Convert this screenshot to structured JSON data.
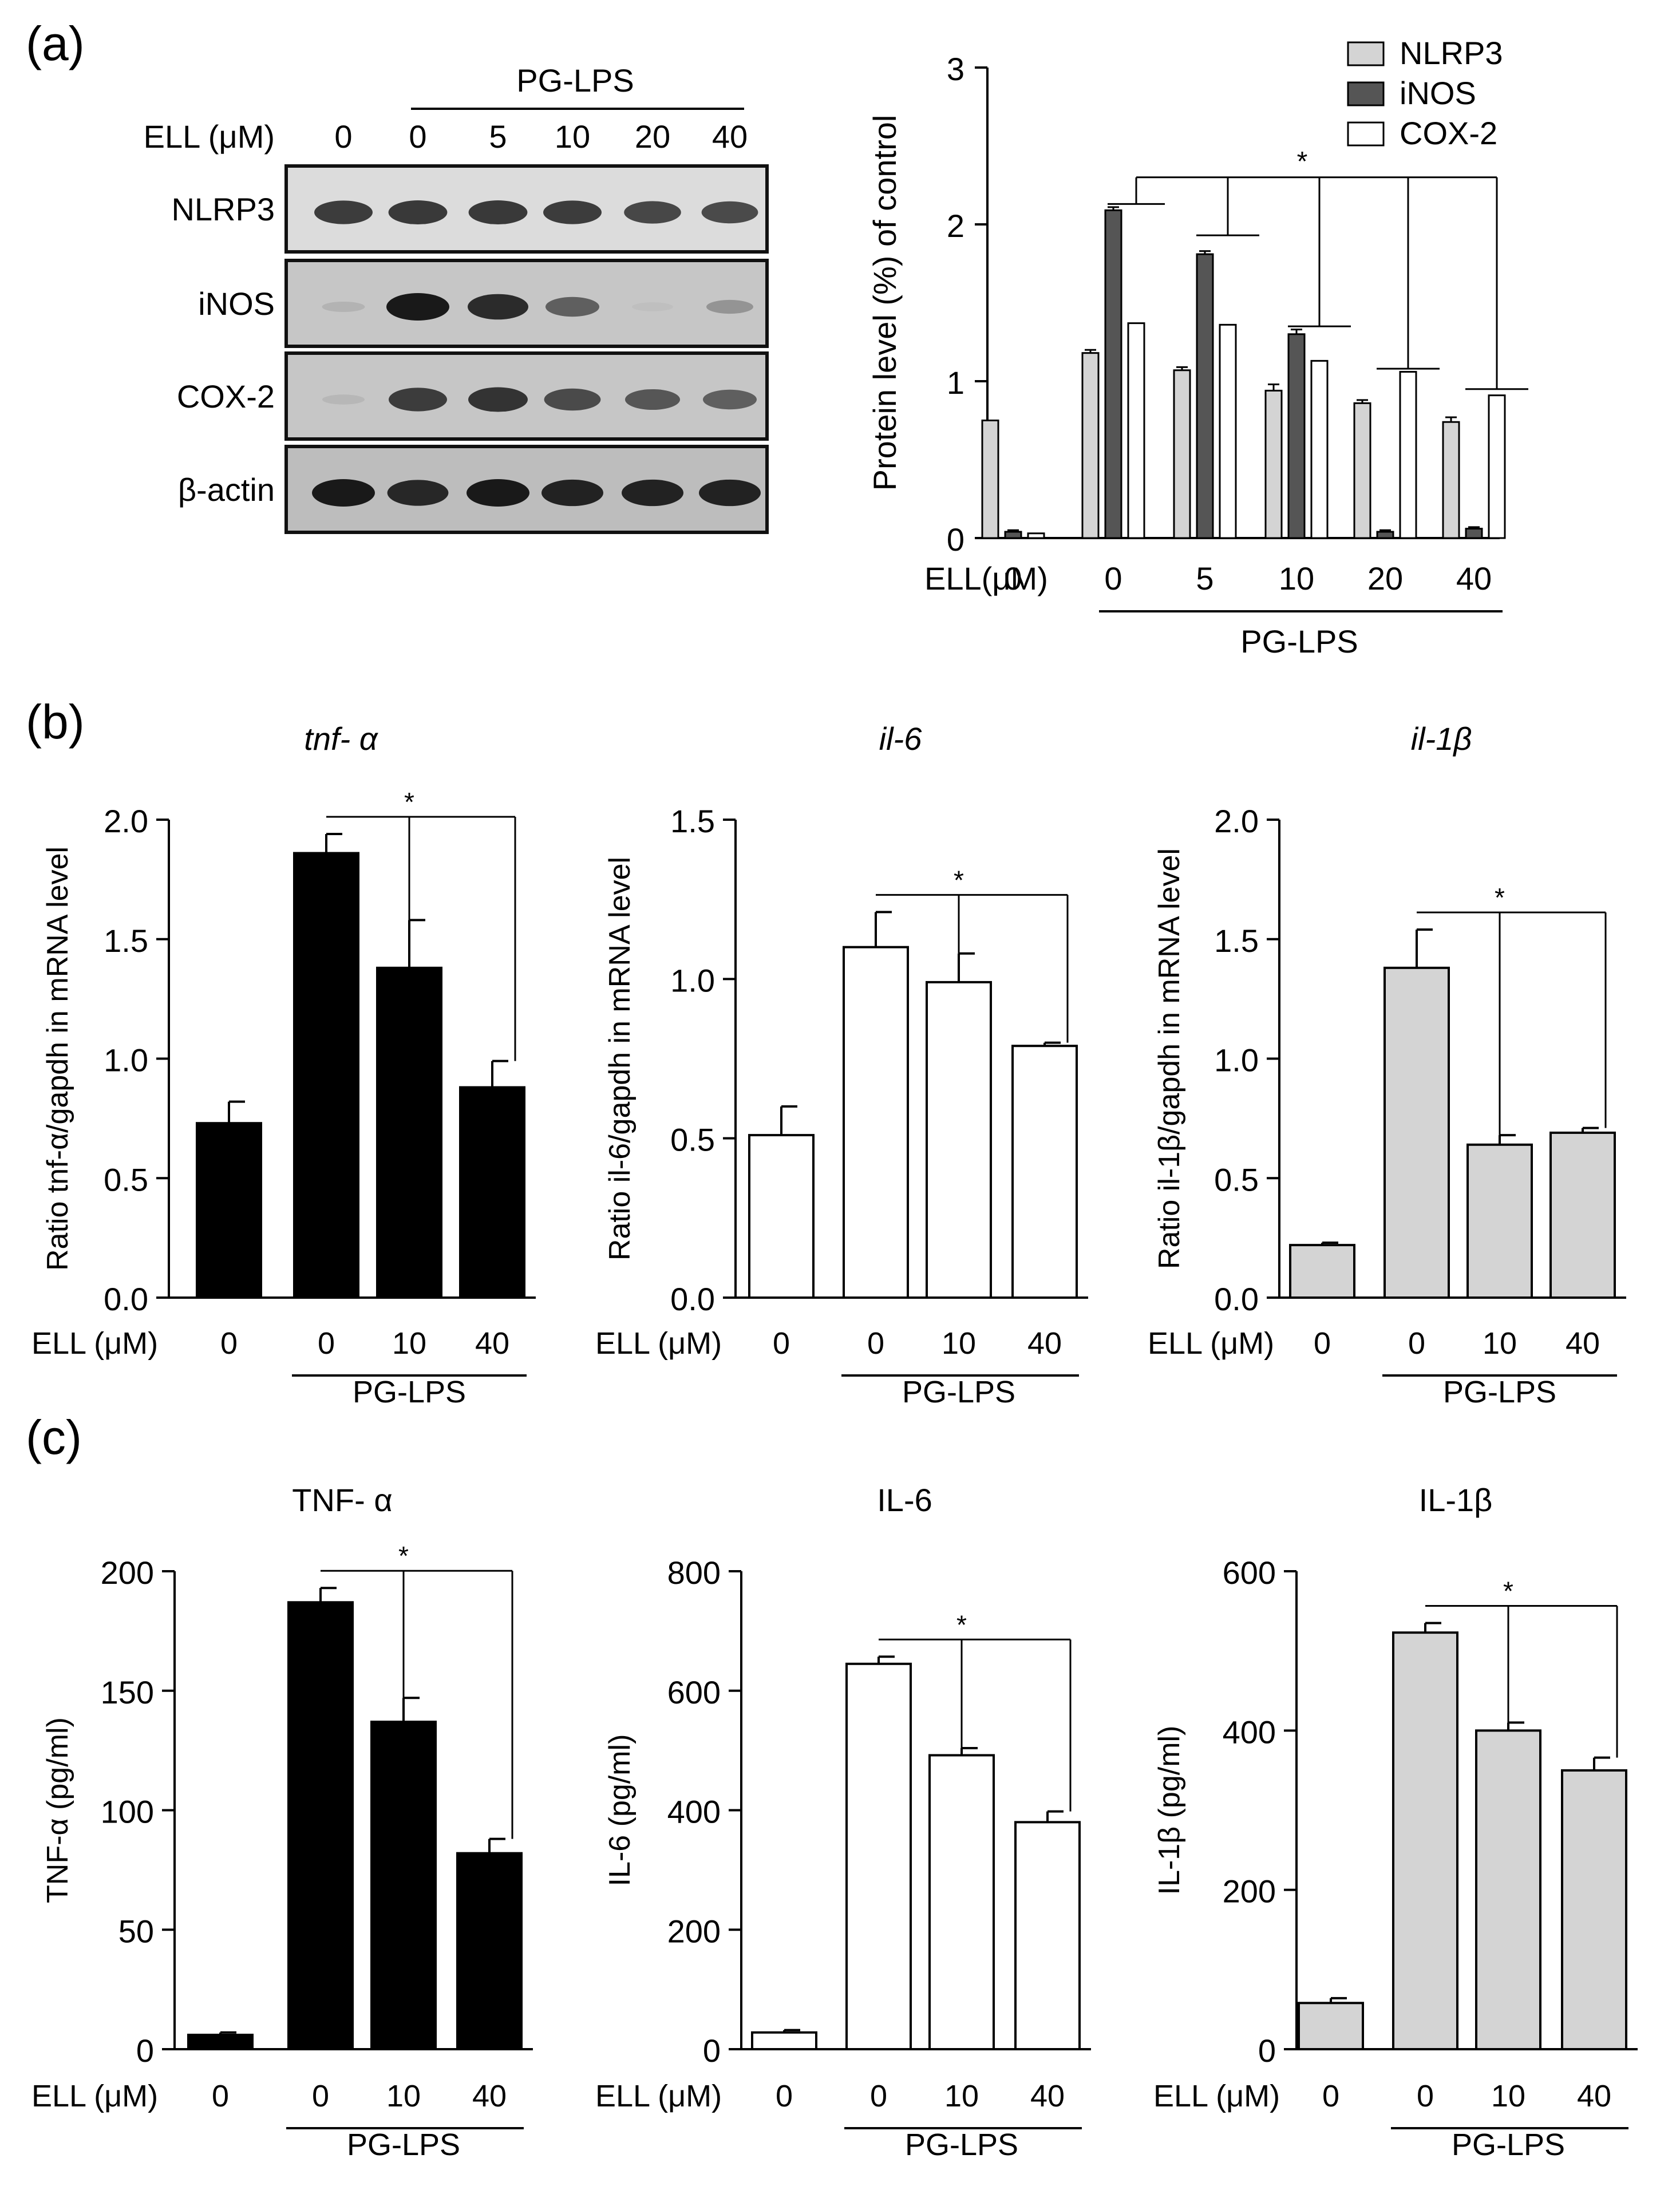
{
  "panel_labels": {
    "a": "(a)",
    "b": "(b)",
    "c": "(c)"
  },
  "blot": {
    "treatment_label": "ELL (μM)",
    "group_label": "PG-LPS",
    "lanes": [
      "0",
      "0",
      "5",
      "10",
      "20",
      "40"
    ],
    "rows": [
      {
        "label": "NLRP3",
        "intensity": [
          0.8,
          0.82,
          0.82,
          0.8,
          0.74,
          0.72
        ]
      },
      {
        "label": "iNOS",
        "intensity": [
          0.12,
          1.0,
          0.9,
          0.6,
          0.05,
          0.3
        ]
      },
      {
        "label": "COX-2",
        "intensity": [
          0.1,
          0.8,
          0.85,
          0.72,
          0.65,
          0.6
        ]
      },
      {
        "label": "β-actin",
        "intensity": [
          1.0,
          0.92,
          1.0,
          0.95,
          0.95,
          0.95
        ]
      }
    ]
  },
  "chart_data": [
    {
      "id": "protein",
      "type": "bar",
      "ylabel": "Protein level (%) of control",
      "ylim": [
        0,
        3
      ],
      "yticks": [
        "0",
        "1",
        "2",
        "3"
      ],
      "treatment_label": "ELL(μM)",
      "categories": [
        "0",
        "0",
        "5",
        "10",
        "20",
        "40"
      ],
      "group_label": "PG-LPS",
      "significance": "*",
      "legend_position": "top-right",
      "series": [
        {
          "name": "NLRP3",
          "color": "#d4d4d4",
          "values": [
            0.75,
            1.18,
            1.07,
            0.94,
            0.86,
            0.74
          ],
          "errors": [
            0.0,
            0.02,
            0.02,
            0.04,
            0.02,
            0.03
          ]
        },
        {
          "name": "iNOS",
          "color": "#555555",
          "values": [
            0.04,
            2.09,
            1.81,
            1.3,
            0.04,
            0.06
          ],
          "errors": [
            0.01,
            0.02,
            0.02,
            0.03,
            0.01,
            0.01
          ]
        },
        {
          "name": "COX-2",
          "color": "#ffffff",
          "values": [
            0.03,
            1.37,
            1.36,
            1.13,
            1.06,
            0.91
          ],
          "errors": [
            0.0,
            0.0,
            0.0,
            0.0,
            0.0,
            0.0
          ]
        }
      ]
    },
    {
      "id": "tnf_mrna",
      "type": "bar",
      "title": "tnf- α",
      "title_italic": true,
      "ylabel": "Ratio tnf-α/gapdh in mRNA level",
      "ylim": [
        0,
        2.0
      ],
      "yticks": [
        "0.0",
        "0.5",
        "1.0",
        "1.5",
        "2.0"
      ],
      "treatment_label": "ELL (μM)",
      "categories": [
        "0",
        "0",
        "10",
        "40"
      ],
      "group_label": "PG-LPS",
      "bar_color": "#000000",
      "significance": "*",
      "values": [
        0.73,
        1.86,
        1.38,
        0.88
      ],
      "errors": [
        0.09,
        0.08,
        0.2,
        0.11
      ]
    },
    {
      "id": "il6_mrna",
      "type": "bar",
      "title": "il-6",
      "title_italic": true,
      "ylabel": "Ratio il-6/gapdh in mRNA level",
      "ylim": [
        0,
        1.5
      ],
      "yticks": [
        "0.0",
        "0.5",
        "1.0",
        "1.5"
      ],
      "treatment_label": "ELL (μM)",
      "categories": [
        "0",
        "0",
        "10",
        "40"
      ],
      "group_label": "PG-LPS",
      "bar_color": "#ffffff",
      "significance": "*",
      "values": [
        0.51,
        1.1,
        0.99,
        0.79
      ],
      "errors": [
        0.09,
        0.11,
        0.09,
        0.01
      ]
    },
    {
      "id": "il1b_mrna",
      "type": "bar",
      "title": "il-1β",
      "title_italic": true,
      "ylabel": "Ratio il-1β/gapdh in mRNA level",
      "ylim": [
        0,
        2.0
      ],
      "yticks": [
        "0.0",
        "0.5",
        "1.0",
        "1.5",
        "2.0"
      ],
      "treatment_label": "ELL (μM)",
      "categories": [
        "0",
        "0",
        "10",
        "40"
      ],
      "group_label": "PG-LPS",
      "bar_color": "#d4d4d4",
      "significance": "*",
      "values": [
        0.22,
        1.38,
        0.64,
        0.69
      ],
      "errors": [
        0.01,
        0.16,
        0.04,
        0.02
      ]
    },
    {
      "id": "tnf_protein",
      "type": "bar",
      "title": "TNF- α",
      "title_italic": false,
      "ylabel": "TNF-α (pg/ml)",
      "ylim": [
        0,
        200
      ],
      "yticks": [
        "0",
        "50",
        "100",
        "150",
        "200"
      ],
      "treatment_label": "ELL (μM)",
      "categories": [
        "0",
        "0",
        "10",
        "40"
      ],
      "group_label": "PG-LPS",
      "bar_color": "#000000",
      "significance": "*",
      "values": [
        6,
        187,
        137,
        82
      ],
      "errors": [
        1,
        6,
        10,
        6
      ]
    },
    {
      "id": "il6_protein",
      "type": "bar",
      "title": "IL-6",
      "title_italic": false,
      "ylabel": "IL-6 (pg/ml)",
      "ylim": [
        0,
        800
      ],
      "yticks": [
        "0",
        "200",
        "400",
        "600",
        "800"
      ],
      "treatment_label": "ELL (μM)",
      "categories": [
        "0",
        "0",
        "10",
        "40"
      ],
      "group_label": "PG-LPS",
      "bar_color": "#ffffff",
      "significance": "*",
      "values": [
        28,
        645,
        492,
        380
      ],
      "errors": [
        4,
        12,
        12,
        18
      ]
    },
    {
      "id": "il1b_protein",
      "type": "bar",
      "title": "IL-1β",
      "title_italic": false,
      "ylabel": "IL-1β (pg/ml)",
      "ylim": [
        0,
        600
      ],
      "yticks": [
        "0",
        "200",
        "400",
        "600"
      ],
      "treatment_label": "ELL (μM)",
      "categories": [
        "0",
        "0",
        "10",
        "40"
      ],
      "group_label": "PG-LPS",
      "bar_color": "#d4d4d4",
      "significance": "*",
      "values": [
        58,
        523,
        400,
        350
      ],
      "errors": [
        6,
        12,
        10,
        16
      ]
    }
  ]
}
